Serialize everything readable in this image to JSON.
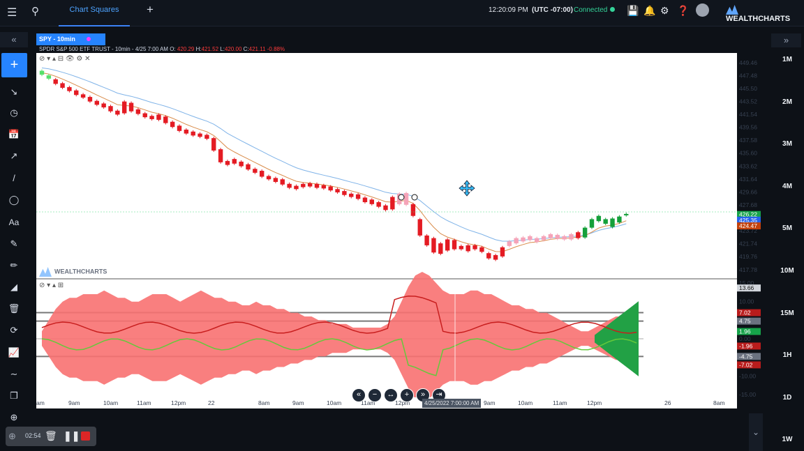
{
  "topbar": {
    "tab_label": "Chart Squares",
    "add_tab": "+",
    "clock": "12:20:09 PM",
    "timezone": "(UTC -07:00)",
    "connection": "Connected",
    "logo": "WEALTHCHARTS"
  },
  "symbol": {
    "tab": "SPY - 10min",
    "info_prefix": "SPDR S&P 500 ETF TRUST  - 10min - 4/25 7:00 AM O:",
    "open": "420.29",
    "high_label": "H:",
    "high": "421.52",
    "low_label": "L:",
    "low": "420.00",
    "close_label": "C:",
    "close": "421.11",
    "change": "-0.88%"
  },
  "price_axis": [
    "449.46",
    "447.48",
    "445.50",
    "443.52",
    "441.54",
    "439.56",
    "437.58",
    "435.60",
    "433.62",
    "431.64",
    "429.66",
    "427.68",
    "423.72",
    "421.74",
    "419.76",
    "417.78"
  ],
  "price_badges": {
    "green": "426.22",
    "blue": "425.35",
    "orange": "424.47"
  },
  "osc_axis": [
    "15.00",
    "10.00",
    "5.00",
    "0.00",
    "-5.00",
    "-10.00",
    "-15.00"
  ],
  "osc_badges": {
    "top": "13.66",
    "r1": "7.02",
    "r2": "4.75",
    "g1": "1.96",
    "z": "0.00",
    "r3": "-1.96",
    "r4": "-4.75",
    "r5": "-7.02"
  },
  "time_axis": [
    "am",
    "9am",
    "10am",
    "11am",
    "12pm",
    "22",
    "8am",
    "9am",
    "10am",
    "11am",
    "12pm",
    "8am",
    "9am",
    "10am",
    "11am",
    "12pm",
    "26",
    "8am"
  ],
  "crosshair_time": "4/25/2022 7:00:00 AM",
  "timeframes": [
    "1M",
    "2M",
    "3M",
    "4M",
    "5M",
    "10M",
    "15M",
    "1H",
    "1D",
    "1W"
  ],
  "recorder": {
    "time": "02:54"
  },
  "chart_data": {
    "type": "candlestick",
    "title": "SPY - 10min",
    "ylim": [
      416.8,
      450.5
    ],
    "candles": [
      [
        448.2,
        447.6,
        "up"
      ],
      [
        447.5,
        447.0,
        "up"
      ],
      [
        446.9,
        446.2,
        "down"
      ],
      [
        446.3,
        445.6,
        "down"
      ],
      [
        445.7,
        445.1,
        "down"
      ],
      [
        445.2,
        444.5,
        "down"
      ],
      [
        444.6,
        444.1,
        "down"
      ],
      [
        444.2,
        443.5,
        "down"
      ],
      [
        443.6,
        443.0,
        "down"
      ],
      [
        443.2,
        442.6,
        "down"
      ],
      [
        442.8,
        442.0,
        "down"
      ],
      [
        442.1,
        441.5,
        "down"
      ],
      [
        443.5,
        441.7,
        "down"
      ],
      [
        443.3,
        442.0,
        "down"
      ],
      [
        442.3,
        441.6,
        "down"
      ],
      [
        441.7,
        441.1,
        "down"
      ],
      [
        441.3,
        440.8,
        "down"
      ],
      [
        441.5,
        440.7,
        "down"
      ],
      [
        441.2,
        440.2,
        "down"
      ],
      [
        440.4,
        439.6,
        "down"
      ],
      [
        439.8,
        439.0,
        "down"
      ],
      [
        439.2,
        438.6,
        "down"
      ],
      [
        438.9,
        438.3,
        "down"
      ],
      [
        438.6,
        438.1,
        "down"
      ],
      [
        438.4,
        437.8,
        "down"
      ],
      [
        437.9,
        436.0,
        "down"
      ],
      [
        436.2,
        434.2,
        "down"
      ],
      [
        434.4,
        433.8,
        "down"
      ],
      [
        434.7,
        434.0,
        "down"
      ],
      [
        434.3,
        433.6,
        "down"
      ],
      [
        433.9,
        433.1,
        "down"
      ],
      [
        433.2,
        432.6,
        "down"
      ],
      [
        432.9,
        432.0,
        "down"
      ],
      [
        432.1,
        431.6,
        "down"
      ],
      [
        431.8,
        431.2,
        "down"
      ],
      [
        431.6,
        430.8,
        "down"
      ],
      [
        430.9,
        430.3,
        "down"
      ],
      [
        430.6,
        430.1,
        "down"
      ],
      [
        430.9,
        430.4,
        "down"
      ],
      [
        431.0,
        430.5,
        "down"
      ],
      [
        430.9,
        430.3,
        "down"
      ],
      [
        430.7,
        430.2,
        "down"
      ],
      [
        430.5,
        429.9,
        "down"
      ],
      [
        430.1,
        429.6,
        "down"
      ],
      [
        429.8,
        429.2,
        "down"
      ],
      [
        429.4,
        428.9,
        "down"
      ],
      [
        429.3,
        428.6,
        "down"
      ],
      [
        428.8,
        428.1,
        "down"
      ],
      [
        428.5,
        427.8,
        "down"
      ],
      [
        428.1,
        427.4,
        "down"
      ],
      [
        427.6,
        426.9,
        "down"
      ],
      [
        428.9,
        427.0,
        "down"
      ],
      [
        429.4,
        427.8,
        "pink"
      ],
      [
        429.5,
        427.7,
        "pink"
      ],
      [
        427.8,
        426.0,
        "down"
      ],
      [
        425.5,
        423.0,
        "down"
      ],
      [
        423.0,
        421.5,
        "down"
      ],
      [
        422.6,
        420.4,
        "down"
      ],
      [
        421.8,
        420.2,
        "down"
      ],
      [
        422.4,
        420.7,
        "down"
      ],
      [
        422.3,
        420.9,
        "down"
      ],
      [
        421.4,
        420.9,
        "down"
      ],
      [
        421.5,
        420.6,
        "down"
      ],
      [
        421.5,
        420.9,
        "down"
      ],
      [
        421.2,
        420.5,
        "down"
      ],
      [
        420.3,
        419.5,
        "down"
      ],
      [
        420.0,
        419.3,
        "down"
      ],
      [
        421.2,
        419.8,
        "down"
      ],
      [
        422.1,
        421.4,
        "pink"
      ],
      [
        422.6,
        421.8,
        "pink"
      ],
      [
        422.7,
        422.1,
        "pink"
      ],
      [
        422.9,
        422.3,
        "pink"
      ],
      [
        422.6,
        422.0,
        "pink"
      ],
      [
        422.9,
        422.3,
        "pink"
      ],
      [
        423.2,
        422.6,
        "pink"
      ],
      [
        423.1,
        422.5,
        "pink"
      ],
      [
        422.9,
        422.4,
        "pink"
      ],
      [
        423.2,
        422.4,
        "pink"
      ],
      [
        423.5,
        422.6,
        "down"
      ],
      [
        424.2,
        422.7,
        "up"
      ],
      [
        425.5,
        424.2,
        "up"
      ],
      [
        426.0,
        425.2,
        "up"
      ],
      [
        425.5,
        424.8,
        "up"
      ],
      [
        425.6,
        424.3,
        "up"
      ],
      [
        425.9,
        425.0,
        "up"
      ],
      [
        426.3,
        426.1,
        "up"
      ]
    ]
  }
}
